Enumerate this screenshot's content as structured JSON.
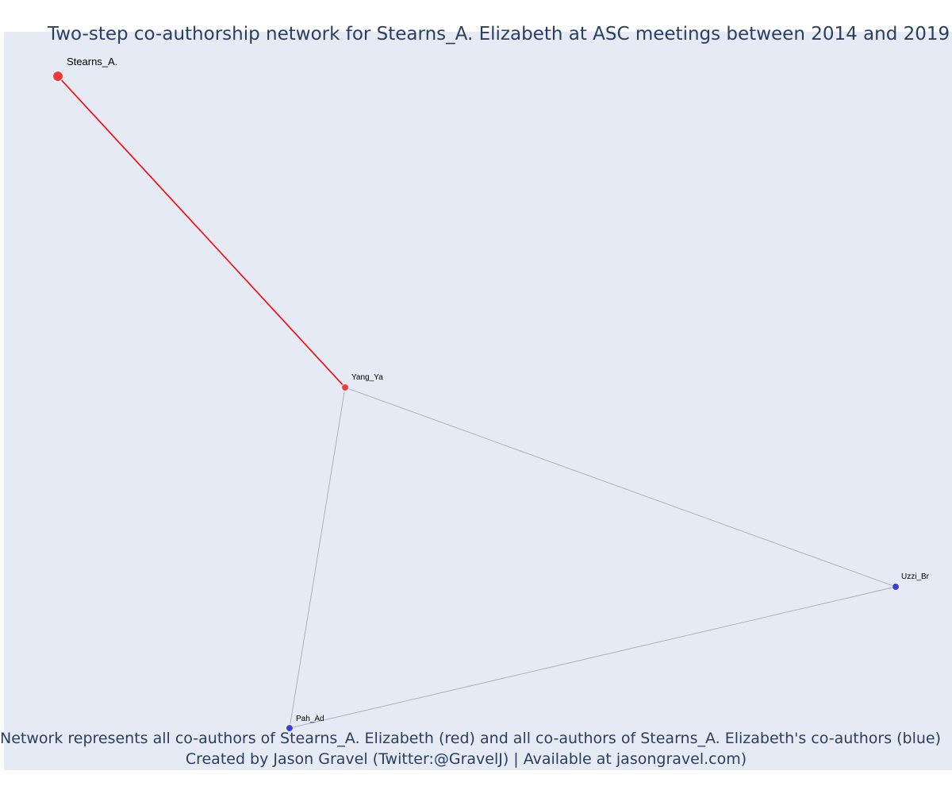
{
  "title": "Two-step co-authorship network for Stearns_A. Elizabeth at ASC meetings between 2014 and 2019",
  "caption_line1": "Network represents all co-authors of Stearns_A. Elizabeth (red) and all co-authors of Stearns_A. Elizabeth's co-authors (blue)",
  "caption_line2": "Created by Jason Gravel (Twitter:@GravelJ) | Available at jasongravel.com)",
  "colors": {
    "focal": "#f03a3a",
    "coauthor": "#f03a3a",
    "second_step": "#3b3be8",
    "focal_edge": "#ff0000",
    "other_edge": "#aaaabb",
    "plot_bg": "#e5eaf4",
    "title_text": "#2a3f5f"
  },
  "nodes": [
    {
      "id": "stearns",
      "label": "Stearns_A.",
      "group": "focal"
    },
    {
      "id": "yang",
      "label": "Yang_Ya",
      "group": "coauthor"
    },
    {
      "id": "uzzi",
      "label": "Uzzi_Br",
      "group": "second_step"
    },
    {
      "id": "pah",
      "label": "Pah_Ad",
      "group": "second_step"
    }
  ],
  "edges": [
    {
      "source": "stearns",
      "target": "yang",
      "type": "focal"
    },
    {
      "source": "yang",
      "target": "uzzi",
      "type": "other"
    },
    {
      "source": "yang",
      "target": "pah",
      "type": "other"
    },
    {
      "source": "uzzi",
      "target": "pah",
      "type": "other"
    }
  ]
}
